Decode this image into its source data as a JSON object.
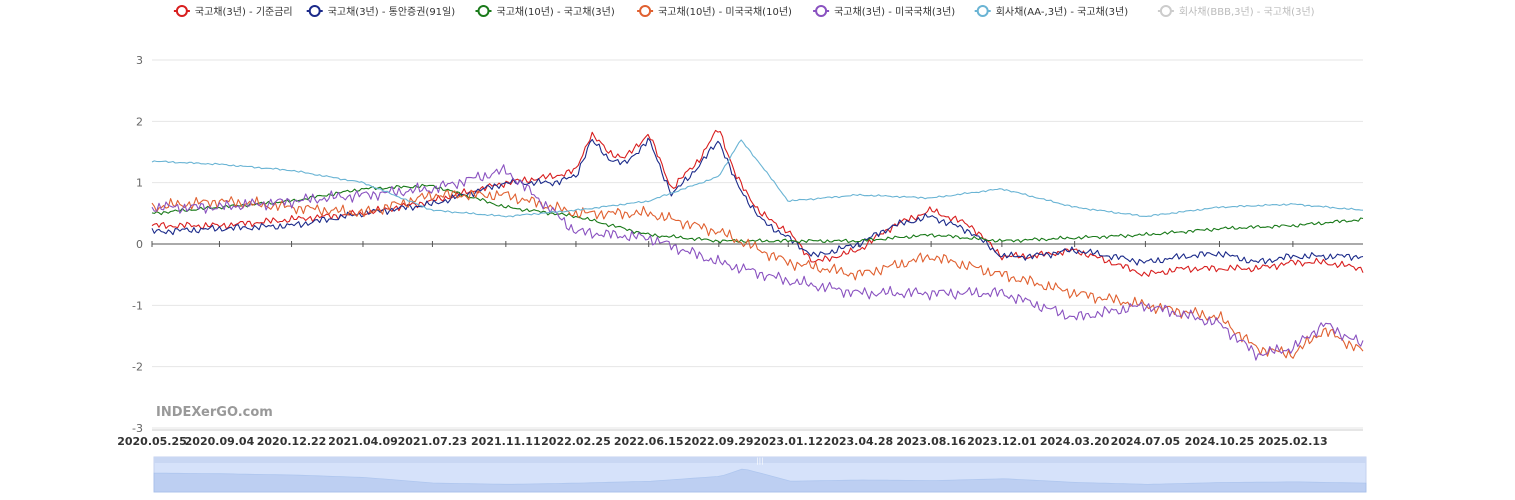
{
  "watermark": "INDEXerGO.com",
  "chart_data": {
    "type": "line",
    "ylim": [
      -3,
      3
    ],
    "yticks": [
      -3,
      -2,
      -1,
      0,
      1,
      2,
      3
    ],
    "grid": true,
    "legend_position": "top",
    "x_tick_labels": [
      "2020.05.25",
      "2020.09.04",
      "2020.12.22",
      "2021.04.09",
      "2021.07.23",
      "2021.11.11",
      "2022.02.25",
      "2022.06.15",
      "2022.09.29",
      "2023.01.12",
      "2023.04.28",
      "2023.08.16",
      "2023.12.01",
      "2024.03.20",
      "2024.07.05",
      "2024.10.25",
      "2025.02.13"
    ],
    "x_start": "2020.05.25",
    "x_end": "2025.05.30",
    "series": [
      {
        "name": "국고채(3년) - 기준금리",
        "color": "#d81e1e",
        "visible": true,
        "x": [
          "2020.05.25",
          "2020.09.04",
          "2020.12.22",
          "2021.04.09",
          "2021.07.23",
          "2021.11.11",
          "2022.01.20",
          "2022.02.25",
          "2022.03.20",
          "2022.04.15",
          "2022.05.10",
          "2022.06.15",
          "2022.07.20",
          "2022.09.01",
          "2022.09.29",
          "2022.10.25",
          "2022.12.01",
          "2023.01.12",
          "2023.02.20",
          "2023.04.28",
          "2023.06.20",
          "2023.08.16",
          "2023.10.15",
          "2023.12.01",
          "2024.01.15",
          "2024.03.20",
          "2024.05.15",
          "2024.07.05",
          "2024.09.01",
          "2024.10.25",
          "2024.12.20",
          "2025.02.13",
          "2025.04.01",
          "2025.05.30"
        ],
        "values": [
          0.3,
          0.3,
          0.4,
          0.5,
          0.7,
          1.0,
          1.1,
          1.2,
          1.8,
          1.5,
          1.4,
          1.8,
          0.9,
          1.4,
          1.9,
          1.1,
          0.5,
          0.2,
          -0.3,
          -0.1,
          0.3,
          0.55,
          0.3,
          -0.2,
          -0.2,
          -0.1,
          -0.3,
          -0.5,
          -0.4,
          -0.4,
          -0.4,
          -0.3,
          -0.3,
          -0.4
        ]
      },
      {
        "name": "국고채(3년) - 통안증권(91일)",
        "color": "#1b2a8a",
        "visible": true,
        "x": [
          "2020.05.25",
          "2020.09.04",
          "2020.12.22",
          "2021.04.09",
          "2021.07.23",
          "2021.11.11",
          "2022.01.20",
          "2022.02.25",
          "2022.03.20",
          "2022.04.15",
          "2022.05.10",
          "2022.06.15",
          "2022.07.20",
          "2022.09.01",
          "2022.09.29",
          "2022.10.25",
          "2022.12.01",
          "2023.01.12",
          "2023.02.20",
          "2023.04.28",
          "2023.06.20",
          "2023.08.16",
          "2023.10.15",
          "2023.12.01",
          "2024.01.15",
          "2024.03.20",
          "2024.05.15",
          "2024.07.05",
          "2024.09.01",
          "2024.10.25",
          "2024.12.20",
          "2025.02.13",
          "2025.04.01",
          "2025.05.30"
        ],
        "values": [
          0.2,
          0.25,
          0.3,
          0.5,
          0.65,
          1.0,
          1.0,
          1.1,
          1.7,
          1.4,
          1.3,
          1.7,
          0.8,
          1.3,
          1.7,
          1.0,
          0.4,
          0.1,
          -0.2,
          0.0,
          0.3,
          0.45,
          0.2,
          -0.2,
          -0.2,
          -0.1,
          -0.2,
          -0.3,
          -0.2,
          -0.15,
          -0.3,
          -0.2,
          -0.2,
          -0.2
        ]
      },
      {
        "name": "국고채(10년) - 국고채(3년)",
        "color": "#1a7a1a",
        "visible": true,
        "x": [
          "2020.05.25",
          "2020.09.04",
          "2020.12.22",
          "2021.04.09",
          "2021.07.23",
          "2021.11.11",
          "2022.02.25",
          "2022.06.15",
          "2022.09.29",
          "2023.01.12",
          "2023.04.28",
          "2023.08.16",
          "2023.12.01",
          "2024.03.20",
          "2024.07.05",
          "2024.10.25",
          "2025.02.13",
          "2025.05.30"
        ],
        "values": [
          0.5,
          0.6,
          0.7,
          0.9,
          0.95,
          0.6,
          0.45,
          0.15,
          0.05,
          0.05,
          0.05,
          0.15,
          0.05,
          0.1,
          0.15,
          0.25,
          0.3,
          0.4
        ]
      },
      {
        "name": "국고채(10년) - 미국국채(10년)",
        "color": "#e06030",
        "visible": true,
        "x": [
          "2020.05.25",
          "2020.09.04",
          "2020.12.22",
          "2021.04.09",
          "2021.07.23",
          "2021.11.11",
          "2022.02.25",
          "2022.06.15",
          "2022.09.29",
          "2023.01.12",
          "2023.04.28",
          "2023.08.16",
          "2023.12.01",
          "2024.03.20",
          "2024.07.05",
          "2024.10.25",
          "2024.12.20",
          "2025.02.13",
          "2025.04.01",
          "2025.05.30"
        ],
        "values": [
          0.6,
          0.7,
          0.6,
          0.5,
          0.8,
          0.8,
          0.5,
          0.5,
          0.2,
          -0.3,
          -0.5,
          -0.2,
          -0.5,
          -0.8,
          -1.0,
          -1.2,
          -1.7,
          -1.8,
          -1.4,
          -1.75
        ]
      },
      {
        "name": "국고채(3년) - 미국국채(3년)",
        "color": "#8a52c0",
        "visible": true,
        "x": [
          "2020.05.25",
          "2020.09.04",
          "2020.12.22",
          "2021.04.09",
          "2021.07.23",
          "2021.11.11",
          "2022.02.25",
          "2022.06.15",
          "2022.09.29",
          "2023.01.12",
          "2023.04.28",
          "2023.08.16",
          "2023.12.01",
          "2024.03.20",
          "2024.07.05",
          "2024.10.25",
          "2024.12.20",
          "2025.02.13",
          "2025.04.01",
          "2025.05.30"
        ],
        "values": [
          0.6,
          0.6,
          0.7,
          0.8,
          0.9,
          1.2,
          0.2,
          0.1,
          -0.3,
          -0.6,
          -0.8,
          -0.8,
          -0.8,
          -1.2,
          -1.0,
          -1.3,
          -1.8,
          -1.7,
          -1.3,
          -1.65
        ]
      },
      {
        "name": "회사채(AA-,3년) - 국고채(3년)",
        "color": "#6ab4d4",
        "visible": true,
        "x": [
          "2020.05.25",
          "2020.09.04",
          "2020.12.22",
          "2021.04.09",
          "2021.07.23",
          "2021.11.11",
          "2022.02.25",
          "2022.06.15",
          "2022.09.29",
          "2022.11.01",
          "2022.12.01",
          "2023.01.12",
          "2023.04.28",
          "2023.08.16",
          "2023.12.01",
          "2024.03.20",
          "2024.07.05",
          "2024.10.25",
          "2025.02.13",
          "2025.05.30"
        ],
        "values": [
          1.35,
          1.3,
          1.2,
          1.0,
          0.55,
          0.45,
          0.55,
          0.7,
          1.1,
          1.7,
          1.3,
          0.7,
          0.8,
          0.75,
          0.9,
          0.6,
          0.45,
          0.6,
          0.65,
          0.55
        ]
      },
      {
        "name": "회사채(BBB,3년) - 국고채(3년)",
        "color": "#cccccc",
        "visible": false,
        "x": [],
        "values": []
      }
    ]
  }
}
